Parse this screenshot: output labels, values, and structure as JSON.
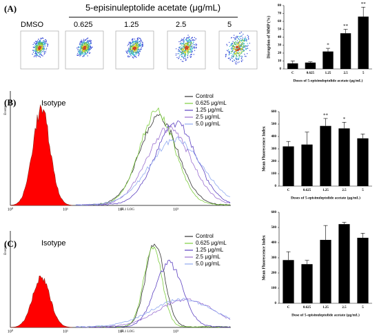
{
  "figure": {
    "panel_labels": [
      "(A)",
      "(B)",
      "(C)"
    ],
    "treatment_title": "5-episinuleptolide acetate (μg/mL)",
    "thumbnail_labels": [
      "DMSO",
      "0.625",
      "1.25",
      "2.5",
      "5"
    ],
    "histograms": [
      {
        "isotype_label": "Isotype",
        "y_label": "Events",
        "x_label": "FL1 LOG",
        "xtick_labels": [
          "10⁰",
          "10¹",
          "10²",
          "10³"
        ],
        "legend": [
          {
            "name": "Control",
            "color": "#333333"
          },
          {
            "name": "0.625 μg/mL",
            "color": "#7ccd3c"
          },
          {
            "name": "1.25 μg/mL",
            "color": "#5a3fc0"
          },
          {
            "name": "2.5 μg/mL",
            "color": "#9a6fd0"
          },
          {
            "name": "5.0 μg/mL",
            "color": "#8fa8f0"
          }
        ]
      },
      {
        "isotype_label": "Isotype",
        "y_label": "Events",
        "x_label": "FL1 LOG",
        "xtick_labels": [
          "10⁰",
          "10¹",
          "10²",
          "10³"
        ],
        "legend": [
          {
            "name": "Control",
            "color": "#333333"
          },
          {
            "name": "0.625 μg/mL",
            "color": "#7ccd3c"
          },
          {
            "name": "1.25 μg/mL",
            "color": "#5a3fc0"
          },
          {
            "name": "2.5 μg/mL",
            "color": "#9a6fd0"
          },
          {
            "name": "5.0 μg/mL",
            "color": "#8fa8f0"
          }
        ]
      }
    ]
  },
  "chart_data": [
    {
      "type": "bar",
      "y_label": "Disruption of MMP (%)",
      "x_label": "Doses of 5-episinuleptolide acetate (μg/mL)",
      "categories": [
        "C",
        "0.625",
        "1.25",
        "2.5",
        "5"
      ],
      "values": [
        7,
        8,
        22,
        45,
        66
      ],
      "errors": [
        3,
        1,
        4,
        5,
        12
      ],
      "color": "#000000",
      "ylim": [
        0,
        80
      ],
      "yticks": [
        0,
        10,
        20,
        30,
        40,
        50,
        60,
        70,
        80
      ],
      "annotations": [
        {
          "category": "1.25",
          "text": "*"
        },
        {
          "category": "2.5",
          "text": "**"
        },
        {
          "category": "5",
          "text": "**"
        }
      ]
    },
    {
      "type": "bar",
      "y_label": "Mean Fluorescence Index",
      "x_label": "Doses of 5-episinuleptolide acetate (μg/mL)",
      "categories": [
        "C",
        "0.625",
        "1.25",
        "2.5",
        "5"
      ],
      "values": [
        320,
        335,
        485,
        465,
        385
      ],
      "errors": [
        40,
        100,
        60,
        50,
        35
      ],
      "color": "#000000",
      "ylim": [
        0,
        600
      ],
      "yticks": [
        0,
        100,
        200,
        300,
        400,
        500,
        600
      ],
      "annotations": [
        {
          "category": "1.25",
          "text": "**"
        },
        {
          "category": "2.5",
          "text": "*"
        }
      ]
    },
    {
      "type": "bar",
      "y_label": "Mean Fluorescence Index",
      "x_label": "Dose of 5-episinuleptolide acetate (μg/mL)",
      "categories": [
        "C",
        "0.625",
        "1.25",
        "2.5",
        "5"
      ],
      "values": [
        285,
        258,
        418,
        522,
        432
      ],
      "errors": [
        55,
        25,
        95,
        12,
        30
      ],
      "color": "#000000",
      "ylim": [
        0,
        600
      ],
      "yticks": [
        0,
        100,
        200,
        300,
        400,
        500,
        600
      ]
    }
  ]
}
